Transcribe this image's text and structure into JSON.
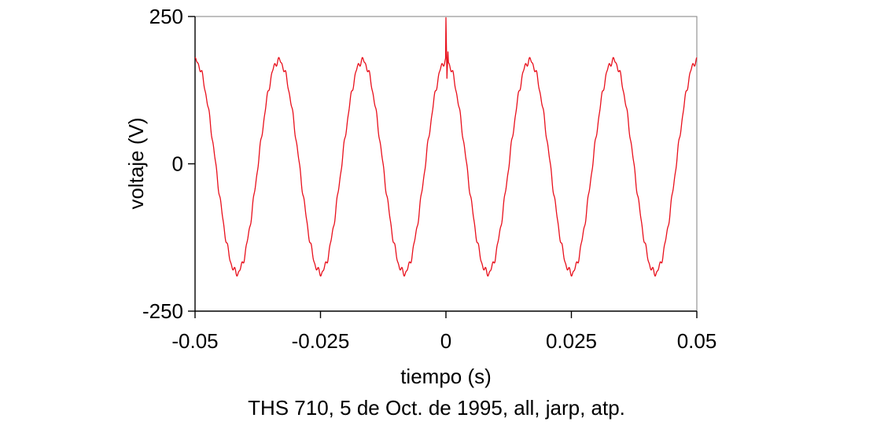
{
  "chart_data": {
    "type": "line",
    "xlabel": "tiempo (s)",
    "ylabel": "voltaje (V)",
    "xlim": [
      -0.05,
      0.05
    ],
    "ylim": [
      -250,
      250
    ],
    "x_ticks": [
      -0.05,
      -0.025,
      0,
      0.025,
      0.05
    ],
    "x_tick_labels": [
      "-0.05",
      "-0.025",
      "0",
      "0.025",
      "0.05"
    ],
    "y_ticks": [
      -250,
      0,
      250
    ],
    "y_tick_labels": [
      "-250",
      "0",
      "250"
    ],
    "grid": false,
    "line_color": "#e8101c",
    "waveform": {
      "shape": "sinusoid",
      "frequency_hz": 60,
      "peak_positive_v": 175,
      "peak_negative_v": -185,
      "peak_at_t_s": 0
    },
    "series": [
      {
        "values": [
          {
            "x": -0.05,
            "y": 172
          },
          {
            "x": -0.0458,
            "y": 0
          },
          {
            "x": -0.0417,
            "y": -185
          },
          {
            "x": -0.0375,
            "y": 0
          },
          {
            "x": -0.0333,
            "y": 175
          },
          {
            "x": -0.0292,
            "y": 0
          },
          {
            "x": -0.025,
            "y": -185
          },
          {
            "x": -0.0208,
            "y": 0
          },
          {
            "x": -0.0167,
            "y": 175
          },
          {
            "x": -0.0125,
            "y": 0
          },
          {
            "x": -0.0083,
            "y": -185
          },
          {
            "x": -0.0042,
            "y": 0
          },
          {
            "x": 0.0,
            "y": 248
          },
          {
            "x": 0.0002,
            "y": 145
          },
          {
            "x": 0.0004,
            "y": 190
          },
          {
            "x": 0.0042,
            "y": 0
          },
          {
            "x": 0.0083,
            "y": -185
          },
          {
            "x": 0.0125,
            "y": 0
          },
          {
            "x": 0.0167,
            "y": 175
          },
          {
            "x": 0.0208,
            "y": 0
          },
          {
            "x": 0.025,
            "y": -185
          },
          {
            "x": 0.0292,
            "y": 0
          },
          {
            "x": 0.0333,
            "y": 175
          },
          {
            "x": 0.0375,
            "y": 0
          },
          {
            "x": 0.0417,
            "y": -185
          },
          {
            "x": 0.0458,
            "y": 0
          },
          {
            "x": 0.05,
            "y": 172
          }
        ]
      }
    ],
    "annotations": [
      {
        "at_x": 0.0,
        "peak_y": 248,
        "kind": "transient spike"
      }
    ]
  },
  "caption": "THS 710, 5 de Oct. de 1995, all, jarp, atp."
}
